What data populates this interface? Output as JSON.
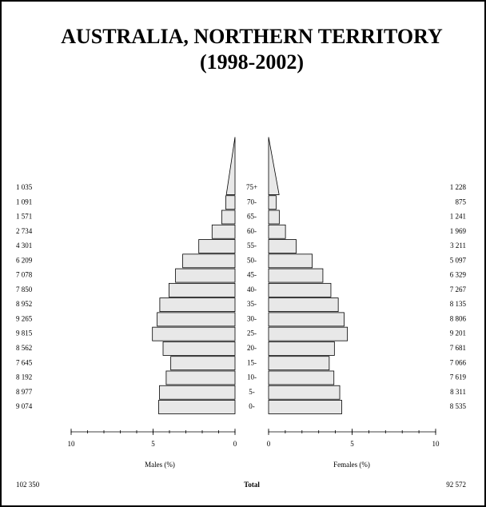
{
  "chart_data": {
    "type": "pyramid",
    "title": "AUSTRALIA, NORTHERN TERRITORY",
    "subtitle": "(1998-2002)",
    "categories": [
      "0-",
      "5-",
      "10-",
      "15-",
      "20-",
      "25-",
      "30-",
      "35-",
      "40-",
      "45-",
      "50-",
      "55-",
      "60-",
      "65-",
      "70-",
      "75+"
    ],
    "series": [
      {
        "name": "Males (%)",
        "color": "#e8e8e8",
        "values": [
          4.66,
          4.61,
          4.2,
          3.92,
          4.39,
          5.04,
          4.75,
          4.59,
          4.03,
          3.63,
          3.19,
          2.21,
          1.4,
          0.81,
          0.56,
          0.53
        ],
        "counts": [
          "9 074",
          "8 977",
          "8 192",
          "7 645",
          "8 562",
          "9 815",
          "9 265",
          "8 952",
          "7 850",
          "7 078",
          "6 209",
          "4 301",
          "2 734",
          "1 571",
          "1 091",
          "1 035"
        ],
        "total": "102 350"
      },
      {
        "name": "Females (%)",
        "color": "#e8e8e8",
        "values": [
          4.38,
          4.26,
          3.91,
          3.63,
          3.94,
          4.72,
          4.52,
          4.17,
          3.73,
          3.25,
          2.61,
          1.65,
          1.01,
          0.64,
          0.45,
          0.63
        ],
        "counts": [
          "8 535",
          "8 311",
          "7 619",
          "7 066",
          "7 681",
          "9 201",
          "8 806",
          "8 135",
          "7 267",
          "6 329",
          "5 097",
          "3 211",
          "1 969",
          "1 241",
          "875",
          "1 228"
        ],
        "total": "92 572"
      }
    ],
    "total_label": "Total",
    "xlim": [
      0,
      10
    ],
    "xticks": [
      0,
      5,
      10
    ],
    "minor_ticks": [
      0,
      1,
      2,
      3,
      4,
      5,
      6,
      7,
      8,
      9,
      10
    ]
  }
}
